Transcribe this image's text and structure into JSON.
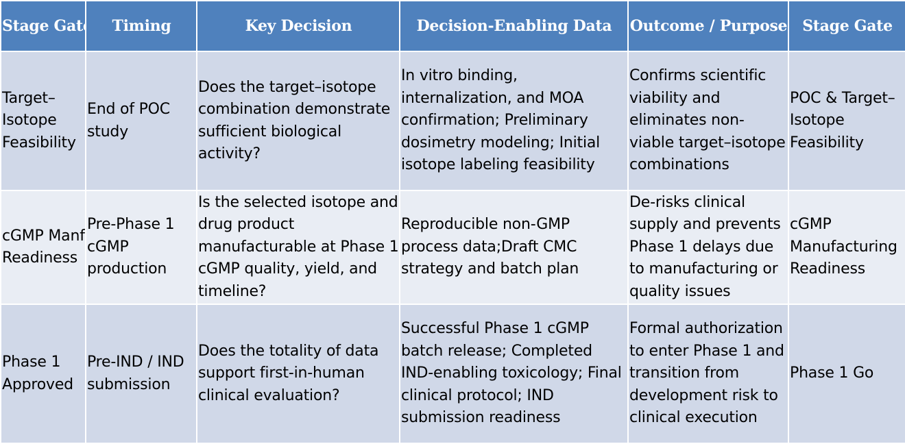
{
  "headers": [
    "Stage Gate",
    "Timing",
    "Key Decision",
    "Decision-Enabling Data",
    "Outcome / Purpose",
    "Stage Gate"
  ],
  "rows": [
    {
      "stage_gate": "Target–Isotope Feasibility",
      "timing": "End of POC study",
      "key_decision": "Does the target–isotope combination demonstrate sufficient biological activity?",
      "decision_data": "In vitro binding, internalization, and MOA confirmation; Preliminary dosimetry modeling; Initial isotope labeling feasibility",
      "outcome": "Confirms scientific viability and eliminates non-viable target–isotope combinations",
      "stage_gate_2": "POC & Target–Isotope Feasibility"
    },
    {
      "stage_gate": "cGMP Manf Readiness",
      "timing": "Pre-Phase 1 cGMP production",
      "key_decision": "Is the selected isotope and drug product manufacturable at Phase 1 cGMP quality, yield, and timeline?",
      "decision_data": "Reproducible non-GMP process data;Draft CMC strategy and batch plan",
      "outcome": "De-risks clinical supply and prevents Phase 1 delays due to manufacturing or quality issues",
      "stage_gate_2": "cGMP Manufacturing Readiness"
    },
    {
      "stage_gate": "Phase 1 Approved",
      "timing": "Pre-IND / IND submission",
      "key_decision": "Does the totality of data support first-in-human clinical evaluation?",
      "decision_data": "Successful Phase 1 cGMP batch release; Completed IND-enabling toxicology; Final clinical protocol; IND submission readiness",
      "outcome": "Formal authorization to enter Phase 1 and transition from development risk to clinical execution",
      "stage_gate_2": "Phase 1 Go"
    }
  ],
  "colors": {
    "header_bg": "#4f81bd",
    "header_text": "#ffffff",
    "row_dark": "#d0d8e8",
    "row_light": "#e9edf4"
  }
}
